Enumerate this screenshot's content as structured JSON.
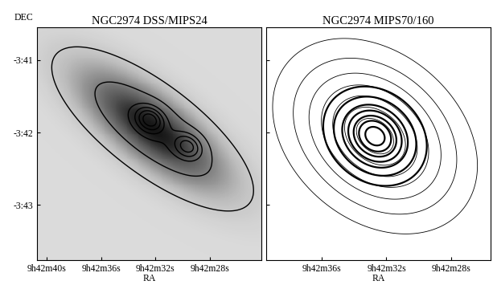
{
  "chart_data": [
    {
      "type": "contour",
      "title": "NGC2974 DSS/MIPS24",
      "x_label": "RA",
      "y_label": "DEC",
      "xlim": [
        40.7,
        24.2
      ],
      "ylim": [
        -43.76,
        -40.55
      ],
      "xticks": [
        {
          "value": 40,
          "label": "9h42m40s"
        },
        {
          "value": 36,
          "label": "9h42m36s"
        },
        {
          "value": 32,
          "label": "9h42m32s"
        },
        {
          "value": 28,
          "label": "9h42m28s"
        }
      ],
      "yticks": [
        {
          "value": -41,
          "label": "-3:41"
        },
        {
          "value": -42,
          "label": "-3:42"
        },
        {
          "value": -43,
          "label": "-3:43"
        }
      ],
      "tick_labels": true,
      "layers": [
        {
          "type": "image",
          "sources": [
            {
              "ra": 32.2,
              "dec": -41.95,
              "sigma_ra": 3.6,
              "sigma_dec": 0.55,
              "rho": 0.75,
              "amplitude": 1.0
            }
          ]
        },
        {
          "type": "contour",
          "line_style": "solid",
          "levels": [
            0.12,
            0.5,
            1.0,
            1.4,
            1.8,
            2.2
          ],
          "sources": [
            {
              "ra": 32.2,
              "dec": -41.95,
              "sigma_ra": 3.6,
              "sigma_dec": 0.55,
              "rho": 0.75,
              "amplitude": 1.0
            },
            {
              "ra": 32.4,
              "dec": -41.82,
              "sigma_ra": 0.7,
              "sigma_dec": 0.12,
              "rho": 0.2,
              "amplitude": 1.6
            },
            {
              "ra": 29.6,
              "dec": -42.19,
              "sigma_ra": 0.7,
              "sigma_dec": 0.12,
              "rho": 0.2,
              "amplitude": 1.3
            }
          ]
        }
      ]
    },
    {
      "type": "contour",
      "title": "NGC2974 MIPS70/160",
      "x_label": "RA",
      "xlim": [
        39.4,
        25.6
      ],
      "ylim": [
        -43.76,
        -40.55
      ],
      "xticks": [
        {
          "value": 36,
          "label": "9h42m36s"
        },
        {
          "value": 32,
          "label": "9h42m32s"
        },
        {
          "value": 28,
          "label": "9h42m28s"
        }
      ],
      "yticks": [
        -41,
        -42,
        -43
      ],
      "tick_labels": "x",
      "layers": [
        {
          "type": "contour",
          "line_style": "solid",
          "levels": [
            0.08,
            0.2,
            0.35,
            0.5,
            0.65,
            0.8,
            0.92
          ],
          "sources": [
            {
              "ra": 32.7,
              "dec": -42.05,
              "sigma_ra": 2.8,
              "sigma_dec": 0.6,
              "rho": 0.3,
              "amplitude": 1.0
            }
          ]
        },
        {
          "type": "contour",
          "line_style": "solid",
          "levels": [
            0.05,
            0.15,
            0.3,
            0.45,
            0.6,
            0.75,
            0.9
          ],
          "sources": [
            {
              "ra": 32.7,
              "dec": -42.05,
              "sigma_ra": 1.3,
              "sigma_dec": 0.28,
              "rho": 0.2,
              "amplitude": 1.0
            }
          ]
        }
      ]
    }
  ]
}
